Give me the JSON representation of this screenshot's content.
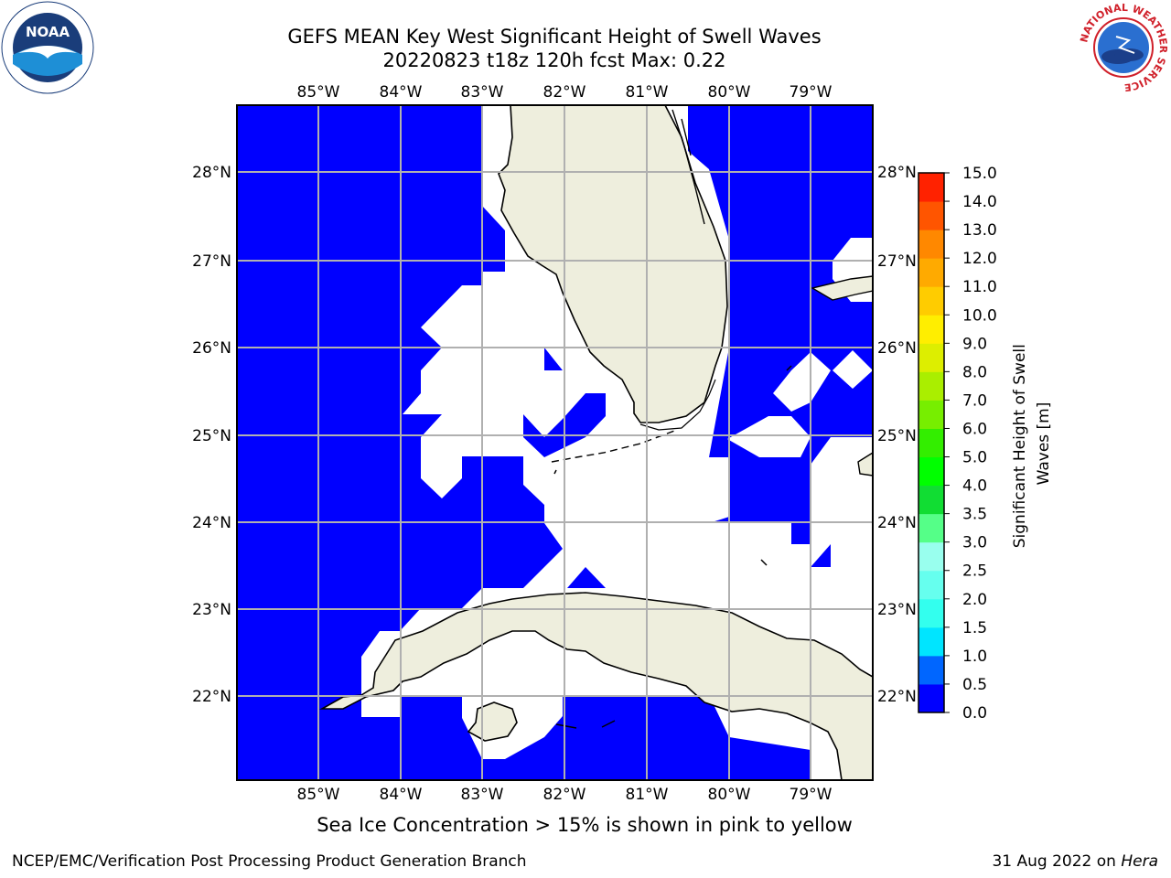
{
  "title": {
    "line1": "GEFS MEAN Key West Significant Height of Swell Waves",
    "line2": "20220823 t18z 120h fcst   Max: 0.22"
  },
  "map": {
    "lon_labels": [
      "85°W",
      "84°W",
      "83°W",
      "82°W",
      "81°W",
      "80°W",
      "79°W"
    ],
    "lat_labels": [
      "28°N",
      "27°N",
      "26°N",
      "25°N",
      "24°N",
      "23°N",
      "22°N"
    ],
    "ocean_color": "#0000ff",
    "land_color": "#eeeedd",
    "no_data_color": "#ffffff"
  },
  "colorbar": {
    "label": "Significant Height of Swell Waves [m]",
    "ticks": [
      "0.0",
      "0.5",
      "1.0",
      "1.5",
      "2.0",
      "2.5",
      "3.0",
      "3.5",
      "4.0",
      "5.0",
      "6.0",
      "7.0",
      "8.0",
      "9.0",
      "10.0",
      "11.0",
      "12.0",
      "13.0",
      "14.0",
      "15.0"
    ],
    "colors": [
      "#0000ff",
      "#0066ff",
      "#00e5ff",
      "#33ffee",
      "#66ffee",
      "#99ffee",
      "#55ff88",
      "#11dd33",
      "#00ff00",
      "#33ee00",
      "#77ee00",
      "#aaee00",
      "#ddee00",
      "#ffee00",
      "#ffcc00",
      "#ffaa00",
      "#ff8800",
      "#ff5500",
      "#ff2200"
    ]
  },
  "note": "Sea Ice Concentration > 15% is shown in pink to yellow",
  "footer": {
    "left": "NCEP/EMC/Verification Post Processing Product Generation Branch",
    "right_date": "31 Aug 2022 on ",
    "right_host": "Hera"
  },
  "logos": {
    "left": "NOAA",
    "right_ring": "NATIONAL WEATHER SERVICE"
  }
}
